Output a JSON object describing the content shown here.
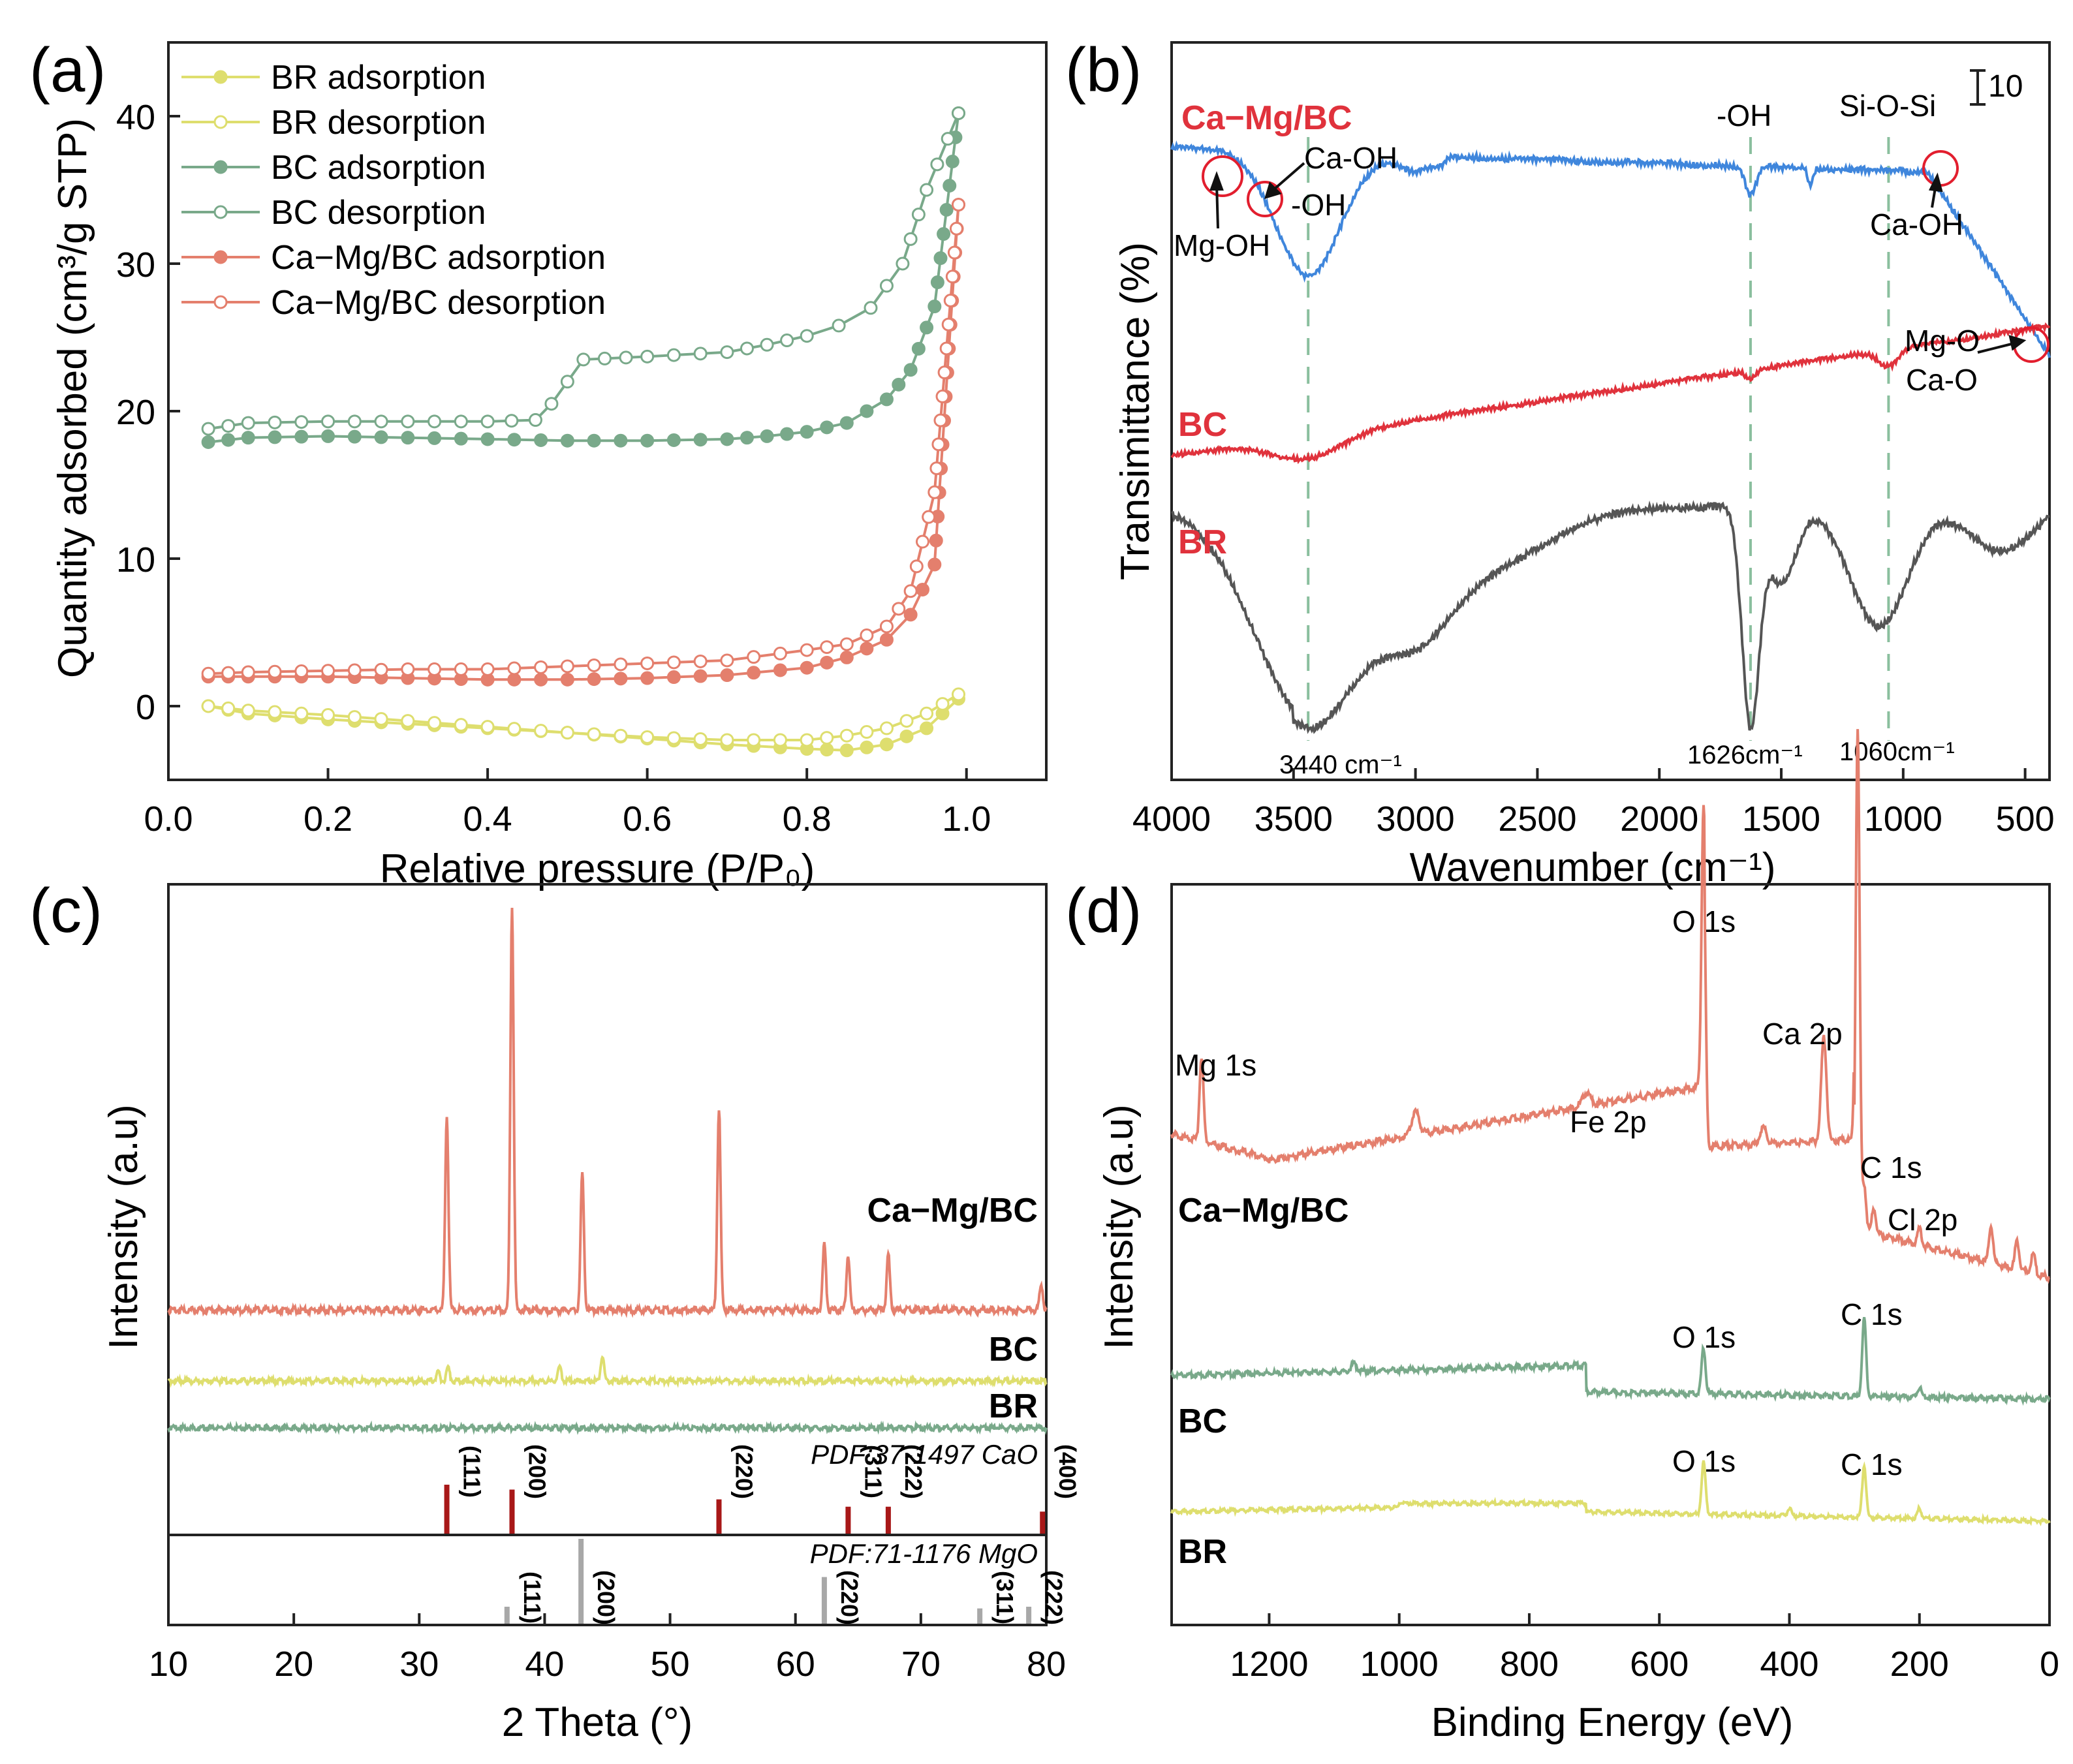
{
  "colors": {
    "br": "#dede6e",
    "bc": "#79a98a",
    "camg": "#e47f6d",
    "blue": "#3f86dc",
    "red": "#e0323c",
    "dark": "#555555",
    "cao": "#a81818",
    "mgo": "#a8a8a8",
    "dash": "#8abf9e",
    "circle": "#e21e2e"
  },
  "chart_data": [
    {
      "id": "a",
      "type": "line",
      "panel_label": "(a)",
      "xlabel": "Relative pressure (P/P₀)",
      "ylabel": "Quantity adsorbed (cm³/g STP)",
      "xlim": [
        0,
        1.1
      ],
      "ylim": [
        -5,
        45
      ],
      "xticks": [
        "0.0",
        "0.2",
        "0.4",
        "0.6",
        "0.8",
        "1.0"
      ],
      "yticks": [
        "0",
        "10",
        "20",
        "30",
        "40"
      ],
      "legend_position": "top-left",
      "series": [
        {
          "name": "BR adsorption",
          "color_key": "br",
          "marker": "filled",
          "x": [
            0.05,
            0.1,
            0.2,
            0.3,
            0.4,
            0.5,
            0.6,
            0.7,
            0.8,
            0.85,
            0.9,
            0.95,
            0.99
          ],
          "y": [
            0,
            -0.5,
            -0.9,
            -1.2,
            -1.5,
            -1.8,
            -2.2,
            -2.6,
            -2.9,
            -3.0,
            -2.6,
            -1.5,
            0.5
          ]
        },
        {
          "name": "BR desorption",
          "color_key": "br",
          "marker": "open",
          "x": [
            0.99,
            0.95,
            0.9,
            0.85,
            0.8,
            0.7,
            0.6,
            0.5,
            0.4,
            0.3,
            0.2,
            0.1,
            0.05
          ],
          "y": [
            0.8,
            -0.5,
            -1.5,
            -2.0,
            -2.3,
            -2.3,
            -2.1,
            -1.8,
            -1.4,
            -1.0,
            -0.6,
            -0.3,
            0
          ]
        },
        {
          "name": "BC adsorption",
          "color_key": "bc",
          "marker": "filled",
          "x": [
            0.05,
            0.1,
            0.2,
            0.3,
            0.4,
            0.5,
            0.6,
            0.7,
            0.75,
            0.8,
            0.85,
            0.9,
            0.93,
            0.96,
            0.99
          ],
          "y": [
            17.9,
            18.2,
            18.3,
            18.2,
            18.1,
            18.0,
            18.0,
            18.1,
            18.3,
            18.6,
            19.2,
            20.8,
            22.8,
            27.1,
            40.2
          ]
        },
        {
          "name": "BC desorption",
          "color_key": "bc",
          "marker": "open",
          "x": [
            0.99,
            0.95,
            0.92,
            0.88,
            0.84,
            0.8,
            0.75,
            0.7,
            0.6,
            0.52,
            0.5,
            0.48,
            0.46,
            0.4,
            0.3,
            0.2,
            0.1,
            0.05
          ],
          "y": [
            40.2,
            35,
            30,
            27,
            25.8,
            25.1,
            24.5,
            24.0,
            23.7,
            23.5,
            22.0,
            20.5,
            19.4,
            19.3,
            19.3,
            19.3,
            19.2,
            18.8
          ]
        },
        {
          "name": "Ca−Mg/BC adsorption",
          "color_key": "camg",
          "marker": "filled",
          "x": [
            0.05,
            0.1,
            0.2,
            0.3,
            0.4,
            0.5,
            0.6,
            0.7,
            0.8,
            0.85,
            0.9,
            0.93,
            0.96,
            0.99
          ],
          "y": [
            2.0,
            2.0,
            2.0,
            1.9,
            1.8,
            1.8,
            1.9,
            2.1,
            2.6,
            3.3,
            4.5,
            6.2,
            9.6,
            34.0
          ]
        },
        {
          "name": "Ca−Mg/BC desorption",
          "color_key": "camg",
          "marker": "open",
          "x": [
            0.99,
            0.96,
            0.93,
            0.9,
            0.85,
            0.8,
            0.7,
            0.6,
            0.5,
            0.4,
            0.3,
            0.2,
            0.1,
            0.05
          ],
          "y": [
            34.0,
            14.5,
            7.8,
            5.4,
            4.2,
            3.8,
            3.1,
            2.9,
            2.7,
            2.5,
            2.5,
            2.4,
            2.3,
            2.2
          ]
        }
      ]
    },
    {
      "id": "b",
      "type": "line",
      "panel_label": "(b)",
      "xlabel": "Wavenumber (cm⁻¹)",
      "ylabel": "Transimittance (%)",
      "xlim": [
        4000,
        400
      ],
      "xticks": [
        "4000",
        "3500",
        "3000",
        "2500",
        "2000",
        "1500",
        "1000",
        "500"
      ],
      "scale_bar_label": "10",
      "series_labels": [
        "Ca−Mg/BC",
        "BC",
        "BR"
      ],
      "peak_labels": [
        "3440 cm⁻¹",
        "1626cm⁻¹",
        "1060cm⁻¹"
      ],
      "dashed_positions": [
        3440,
        1626,
        1060
      ],
      "annotations": [
        "-OH",
        "Si-O-Si",
        "Ca-OH",
        "-OH",
        "Mg-OH",
        "Ca-OH",
        "Mg-O",
        "Ca-O"
      ]
    },
    {
      "id": "c",
      "type": "line",
      "panel_label": "(c)",
      "xlabel": "2 Theta (°)",
      "ylabel": "Intensity (a.u)",
      "xlim": [
        10,
        80
      ],
      "xticks": [
        "10",
        "20",
        "30",
        "40",
        "50",
        "60",
        "70",
        "80"
      ],
      "series_labels": [
        "Ca−Mg/BC",
        "BC",
        "BR"
      ],
      "camg_peaks": [
        [
          32.2,
          300
        ],
        [
          37.4,
          620
        ],
        [
          43.0,
          210
        ],
        [
          53.9,
          310
        ],
        [
          62.3,
          100
        ],
        [
          64.2,
          85
        ],
        [
          67.4,
          85
        ],
        [
          79.6,
          40
        ]
      ],
      "bc_peaks": [
        [
          31.5,
          14
        ],
        [
          32.3,
          20
        ],
        [
          41.2,
          22
        ],
        [
          44.6,
          40
        ]
      ],
      "reference_cards": [
        {
          "name": "PDF:37-1497 CaO",
          "color_key": "cao",
          "lines": [
            [
              32.2,
              1.0
            ],
            [
              37.4,
              0.9
            ],
            [
              53.9,
              0.7
            ],
            [
              64.2,
              0.55
            ],
            [
              67.4,
              0.55
            ],
            [
              79.7,
              0.45
            ]
          ],
          "hkl": [
            "(111)",
            "(200)",
            "(220)",
            "(311)",
            "(222)",
            "(400)"
          ]
        },
        {
          "name": "PDF:71-1176 MgO",
          "color_key": "mgo",
          "lines": [
            [
              37.0,
              0.2
            ],
            [
              42.9,
              1.0
            ],
            [
              62.3,
              0.55
            ],
            [
              74.7,
              0.18
            ],
            [
              78.6,
              0.2
            ]
          ],
          "hkl": [
            "(111)",
            "(200)",
            "(220)",
            "(311)",
            "(222)"
          ]
        }
      ]
    },
    {
      "id": "d",
      "type": "line",
      "panel_label": "(d)",
      "xlabel": "Binding Energy (eV)",
      "ylabel": "Intensity (a.u)",
      "xlim": [
        1350,
        0
      ],
      "xticks": [
        "1200",
        "1000",
        "800",
        "600",
        "400",
        "200",
        "0"
      ],
      "series_labels": [
        "Ca−Mg/BC",
        "BC",
        "BR"
      ],
      "peak_labels": {
        "camg": [
          "Mg 1s",
          "O 1s",
          "Ca 2p",
          "Fe 2p",
          "C 1s",
          "Cl 2p"
        ],
        "bc": [
          "O 1s",
          "C 1s"
        ],
        "br": [
          "O 1s",
          "C 1s"
        ]
      }
    }
  ]
}
